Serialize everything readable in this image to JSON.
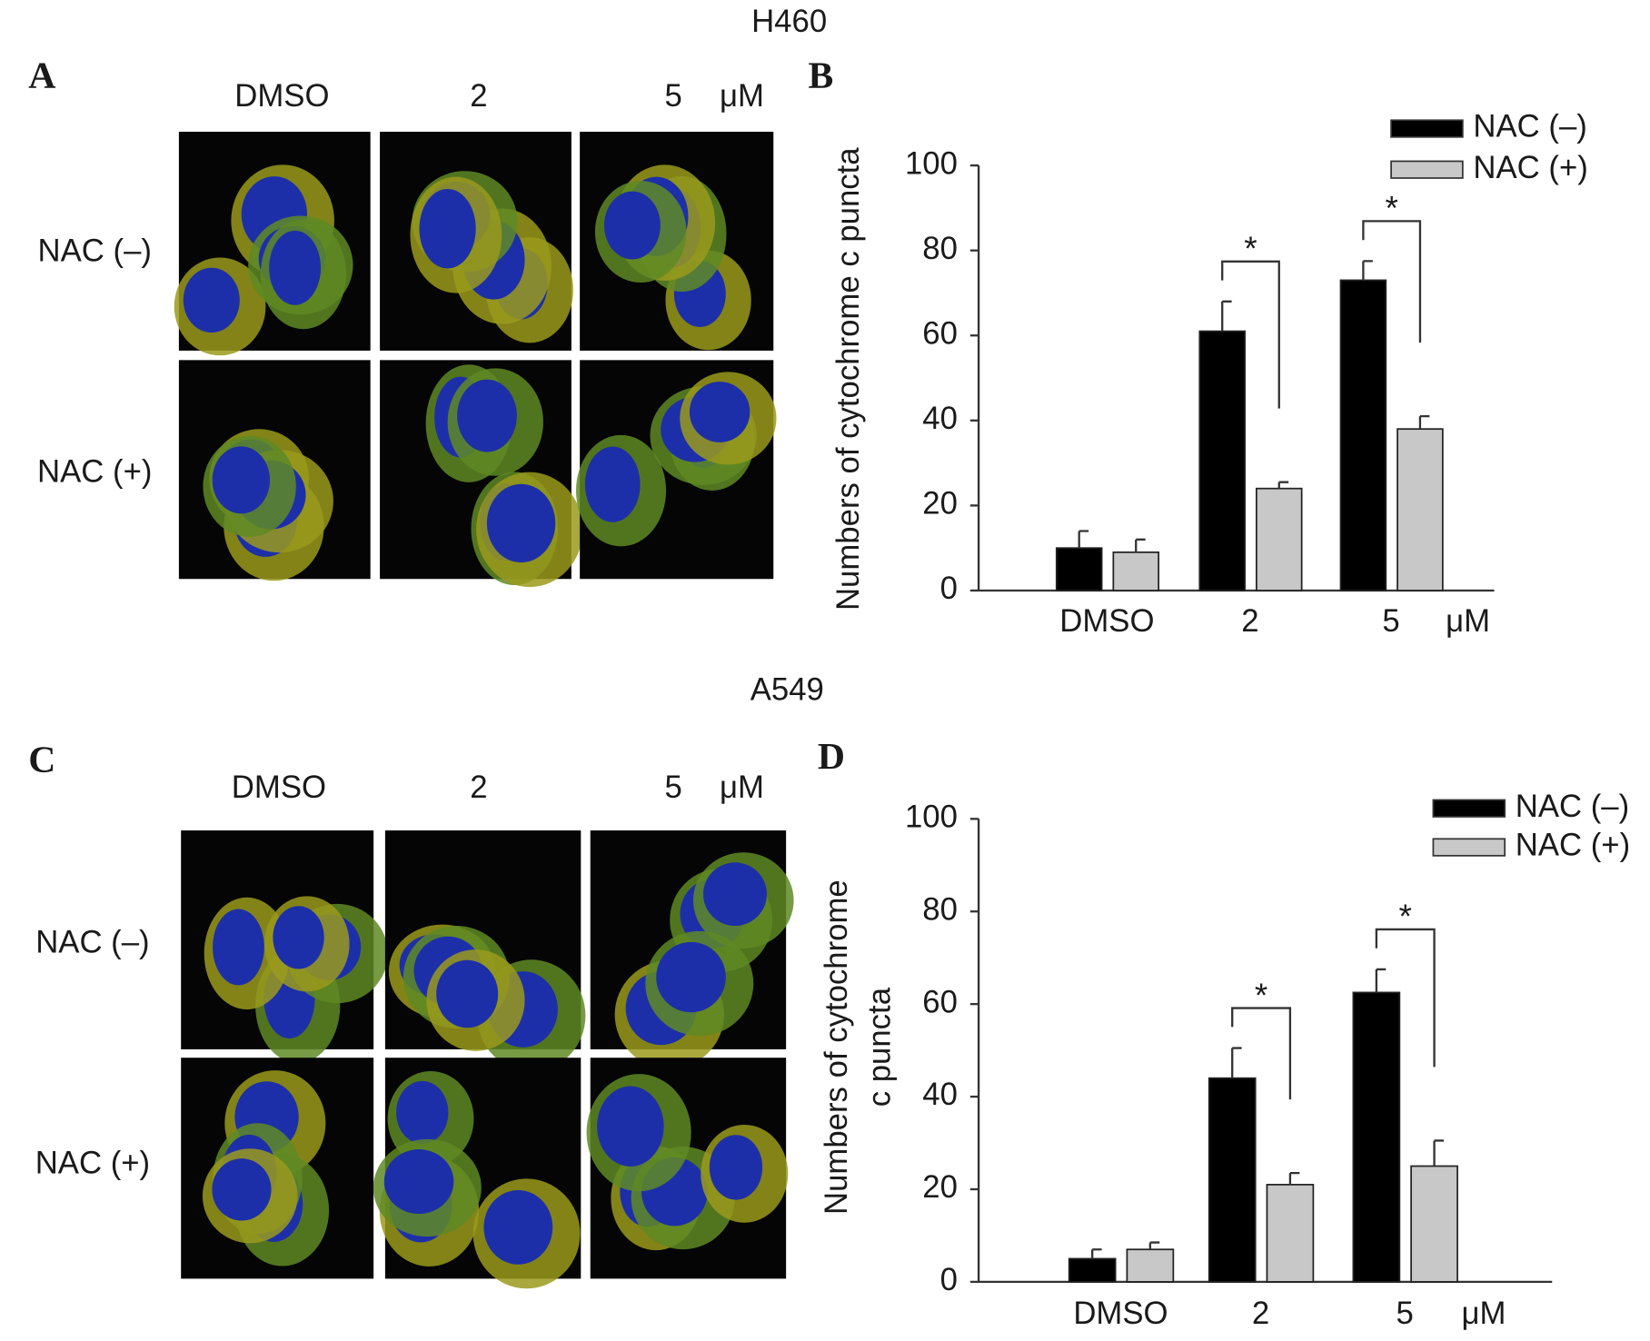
{
  "cell_lines": [
    "H460",
    "A549"
  ],
  "panels": [
    {
      "letter": "A",
      "columns": [
        "DMSO",
        "2",
        "5"
      ],
      "unit": "μM",
      "rows": [
        "NAC (–)",
        "NAC (+)"
      ]
    },
    {
      "letter": "C",
      "columns": [
        "DMSO",
        "2",
        "5"
      ],
      "unit": "μM",
      "rows": [
        "NAC (–)",
        "NAC (+)"
      ]
    }
  ],
  "chart_data": [
    {
      "type": "bar",
      "panel_letter": "B",
      "y_label": "Numbers of cytochrome c puncta",
      "categories": [
        "DMSO",
        "2",
        "5"
      ],
      "x_unit": "μM",
      "series": [
        {
          "name": "NAC (–)",
          "color": "#000000",
          "values": [
            10,
            61,
            73
          ],
          "errors": [
            4,
            7,
            4.5
          ]
        },
        {
          "name": "NAC (+)",
          "color": "#c8c8c8",
          "values": [
            9,
            24,
            38
          ],
          "errors": [
            3,
            1.5,
            3
          ]
        }
      ],
      "significance": [
        null,
        "*",
        "*"
      ],
      "ylim": [
        0,
        100
      ],
      "yticks": [
        0,
        20,
        40,
        60,
        80,
        100
      ],
      "legend": "upper right"
    },
    {
      "type": "bar",
      "panel_letter": "D",
      "y_label": [
        "Numbers of cytochrome",
        "c puncta"
      ],
      "categories": [
        "DMSO",
        "2",
        "5"
      ],
      "x_unit": "μM",
      "series": [
        {
          "name": "NAC (–)",
          "color": "#000000",
          "values": [
            5,
            44,
            62.5
          ],
          "errors": [
            2,
            6.5,
            5
          ]
        },
        {
          "name": "NAC (+)",
          "color": "#c8c8c8",
          "values": [
            7,
            21,
            25
          ],
          "errors": [
            1.5,
            2.5,
            5.5
          ]
        }
      ],
      "significance": [
        null,
        "*",
        "*"
      ],
      "ylim": [
        0,
        100
      ],
      "yticks": [
        0,
        20,
        40,
        60,
        80,
        100
      ],
      "legend": "upper right"
    }
  ]
}
